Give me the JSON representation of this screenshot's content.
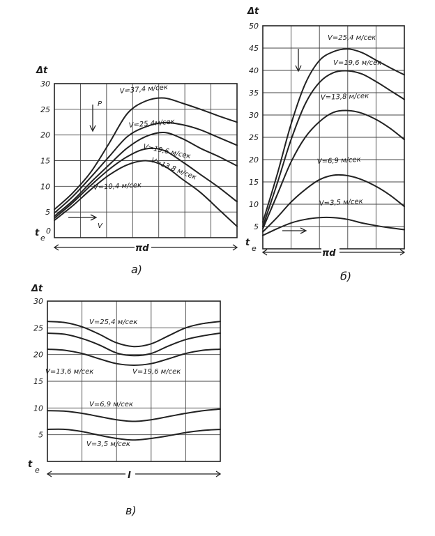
{
  "chart_data": [
    {
      "id": "a",
      "type": "line",
      "caption": "а)",
      "ylabel": "Δt",
      "xlabel": "πd",
      "xlabel_left": "t",
      "xlabel_left_sub": "e",
      "origin_label": "0",
      "ylim": [
        0,
        30
      ],
      "yticks": [
        5,
        10,
        15,
        20,
        25,
        30
      ],
      "x": [
        0,
        0.1,
        0.2,
        0.3,
        0.4,
        0.5,
        0.6,
        0.7,
        0.8,
        0.9,
        1.0
      ],
      "series": [
        {
          "name": "V=37,4 м/сек",
          "values": [
            5.5,
            8.7,
            12.8,
            18.4,
            24.2,
            26.6,
            27.2,
            26.2,
            25.0,
            23.7,
            22.5
          ]
        },
        {
          "name": "V=25,4м/сек",
          "values": [
            4.8,
            8.0,
            11.8,
            15.8,
            19.7,
            21.6,
            22.4,
            22.0,
            21.0,
            19.5,
            18.0
          ]
        },
        {
          "name": "V=19,6 м/сек",
          "values": [
            4.2,
            7.2,
            10.8,
            14.2,
            17.5,
            19.7,
            20.5,
            19.3,
            17.4,
            15.8,
            14.0
          ]
        },
        {
          "name": "V=13,8 м/сек",
          "values": [
            3.8,
            6.8,
            10.2,
            13.3,
            15.8,
            17.3,
            17.0,
            14.8,
            12.3,
            9.8,
            7.0
          ]
        },
        {
          "name": "V=10,4 м/сек",
          "values": [
            3.4,
            6.2,
            9.4,
            12.2,
            14.2,
            15.0,
            14.0,
            11.4,
            8.8,
            5.5,
            2.2
          ]
        }
      ],
      "annotations": [
        "P",
        "V"
      ]
    },
    {
      "id": "b",
      "type": "line",
      "caption": "б)",
      "ylabel": "Δt",
      "xlabel": "πd",
      "xlabel_left": "t",
      "xlabel_left_sub": "e",
      "ylim": [
        0,
        50
      ],
      "yticks": [
        5,
        10,
        15,
        20,
        25,
        30,
        35,
        40,
        45,
        50
      ],
      "x": [
        0,
        0.1,
        0.2,
        0.3,
        0.4,
        0.5,
        0.6,
        0.7,
        0.8,
        0.9,
        1.0
      ],
      "series": [
        {
          "name": "V=25,4 м/сек",
          "values": [
            6.0,
            16.5,
            28.0,
            37.0,
            42.2,
            44.2,
            44.8,
            44.0,
            42.3,
            40.6,
            39.0
          ]
        },
        {
          "name": "V=19,6 м/сек",
          "values": [
            5.0,
            14.5,
            24.5,
            32.5,
            37.3,
            39.5,
            39.9,
            39.2,
            37.5,
            35.5,
            33.5
          ]
        },
        {
          "name": "V=13,8 м/сек",
          "values": [
            4.5,
            12.0,
            19.5,
            25.0,
            28.5,
            30.6,
            31.0,
            30.4,
            29.0,
            27.0,
            24.5
          ]
        },
        {
          "name": "V=6,9 м/сек",
          "values": [
            3.8,
            7.0,
            10.5,
            13.3,
            15.5,
            16.5,
            16.4,
            15.5,
            14.0,
            12.0,
            9.5
          ]
        },
        {
          "name": "V=3,5 м/сек",
          "values": [
            3.0,
            4.5,
            5.8,
            6.6,
            7.0,
            7.0,
            6.6,
            5.8,
            5.2,
            4.7,
            4.3
          ]
        }
      ]
    },
    {
      "id": "c",
      "type": "line",
      "caption": "в)",
      "ylabel": "Δt",
      "xlabel": "l",
      "xlabel_left": "t",
      "xlabel_left_sub": "e",
      "ylim": [
        0,
        30
      ],
      "yticks": [
        5,
        10,
        15,
        20,
        25,
        30
      ],
      "x": [
        0,
        0.1,
        0.2,
        0.3,
        0.4,
        0.5,
        0.6,
        0.7,
        0.8,
        0.9,
        1.0
      ],
      "series": [
        {
          "name": "V=25,4 м/сек",
          "values": [
            26.2,
            26.0,
            25.2,
            23.8,
            22.2,
            21.5,
            22.0,
            23.5,
            25.0,
            25.8,
            26.2
          ]
        },
        {
          "name": "",
          "values": [
            24.0,
            23.8,
            23.0,
            21.8,
            20.3,
            19.8,
            20.2,
            21.6,
            22.8,
            23.5,
            24.0
          ]
        },
        {
          "name": "",
          "values": [
            21.0,
            20.8,
            20.2,
            19.2,
            18.3,
            18.0,
            18.3,
            19.2,
            20.2,
            20.8,
            21.0
          ]
        },
        {
          "name": "V=6,9 м/сек",
          "values": [
            9.5,
            9.4,
            9.0,
            8.4,
            7.8,
            7.5,
            7.8,
            8.4,
            9.0,
            9.5,
            9.8
          ]
        },
        {
          "name": "V=3,5 м/сек",
          "values": [
            6.0,
            6.0,
            5.6,
            4.9,
            4.3,
            4.0,
            4.3,
            4.8,
            5.4,
            5.8,
            6.0
          ]
        }
      ],
      "extra_labels": [
        "V=13,6 м/сек",
        "V=19,6 м/сек"
      ]
    }
  ]
}
